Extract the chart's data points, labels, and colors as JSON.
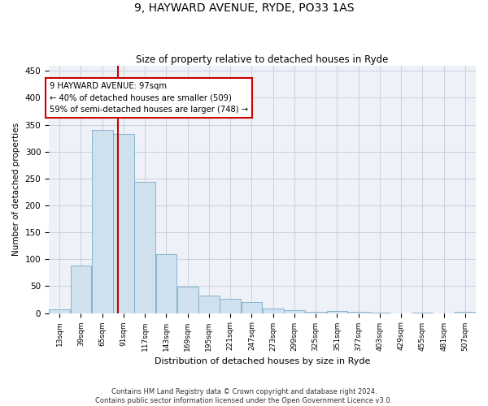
{
  "title": "9, HAYWARD AVENUE, RYDE, PO33 1AS",
  "subtitle": "Size of property relative to detached houses in Ryde",
  "xlabel": "Distribution of detached houses by size in Ryde",
  "ylabel": "Number of detached properties",
  "footer_line1": "Contains HM Land Registry data © Crown copyright and database right 2024.",
  "footer_line2": "Contains public sector information licensed under the Open Government Licence v3.0.",
  "bar_color": "#cfe0ee",
  "bar_edge_color": "#7aaac8",
  "grid_color": "#c8d0dc",
  "bg_color": "#eef2f8",
  "vline_color": "#cc0000",
  "vline_x": 97,
  "annotation_box_color": "#cc0000",
  "annotation_text_line1": "9 HAYWARD AVENUE: 97sqm",
  "annotation_text_line2": "← 40% of detached houses are smaller (509)",
  "annotation_text_line3": "59% of semi-detached houses are larger (748) →",
  "ylim": [
    0,
    460
  ],
  "yticks": [
    0,
    50,
    100,
    150,
    200,
    250,
    300,
    350,
    400,
    450
  ],
  "bin_edges": [
    13,
    39,
    65,
    91,
    117,
    143,
    169,
    195,
    221,
    247,
    273,
    299,
    325,
    351,
    377,
    403,
    429,
    455,
    481,
    507,
    533
  ],
  "bar_heights": [
    7,
    88,
    340,
    333,
    244,
    110,
    49,
    32,
    26,
    21,
    9,
    5,
    2,
    4,
    2,
    1,
    0,
    1,
    0,
    3
  ]
}
